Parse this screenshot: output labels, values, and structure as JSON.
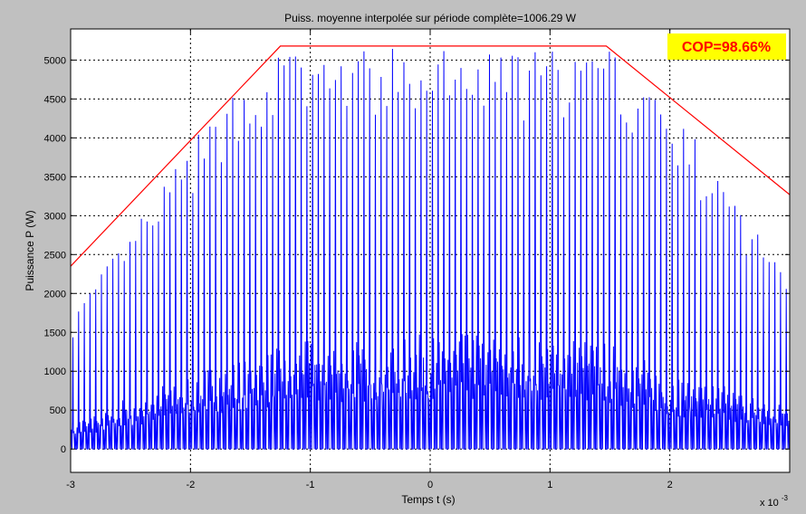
{
  "chart_data": {
    "type": "line",
    "title": "Puiss. moyenne interpolée sur période complète=1006.29 W",
    "xlabel": "Temps t (s)",
    "ylabel": "Puissance P (W)",
    "x_scale_label": "x 10",
    "x_scale_exponent": "-3",
    "xlim": [
      -3,
      3
    ],
    "ylim": [
      -300,
      5400
    ],
    "x_ticks": [
      -3,
      -2,
      -1,
      0,
      1,
      2
    ],
    "x_tick_labels": [
      "-3",
      "-2",
      "-1",
      "0",
      "1",
      "2"
    ],
    "y_ticks": [
      0,
      500,
      1000,
      1500,
      2000,
      2500,
      3000,
      3500,
      4000,
      4500,
      5000
    ],
    "y_tick_labels": [
      "0",
      "500",
      "1000",
      "1500",
      "2000",
      "2500",
      "3000",
      "3500",
      "4000",
      "4500",
      "5000"
    ],
    "grid": true,
    "annotation": {
      "text": "COP=98.66%",
      "color": "#ff0000",
      "background": "#ffff00",
      "placement": "top-right"
    },
    "series": [
      {
        "color": "#0000ff",
        "style": "oscillating",
        "x_range": [
          -3,
          3
        ],
        "pulses_per_ms": 21,
        "peak_envelope_x": [
          -3,
          -2.5,
          -2,
          -1.5,
          -1.25,
          1.5,
          2,
          2.5,
          3
        ],
        "peak_envelope_y": [
          1700,
          2800,
          3900,
          4900,
          5150,
          5150,
          4500,
          3300,
          2300
        ],
        "base_envelope_x": [
          -3,
          -2,
          -1,
          0,
          1,
          1.5,
          2,
          2.5,
          3
        ],
        "base_envelope_y": [
          350,
          1000,
          1400,
          1480,
          1500,
          1380,
          1000,
          800,
          550
        ]
      },
      {
        "color": "#ff0000",
        "style": "envelope",
        "x": [
          -3,
          -1.25,
          1.47,
          3
        ],
        "y": [
          2350,
          5180,
          5180,
          3270
        ]
      }
    ]
  }
}
